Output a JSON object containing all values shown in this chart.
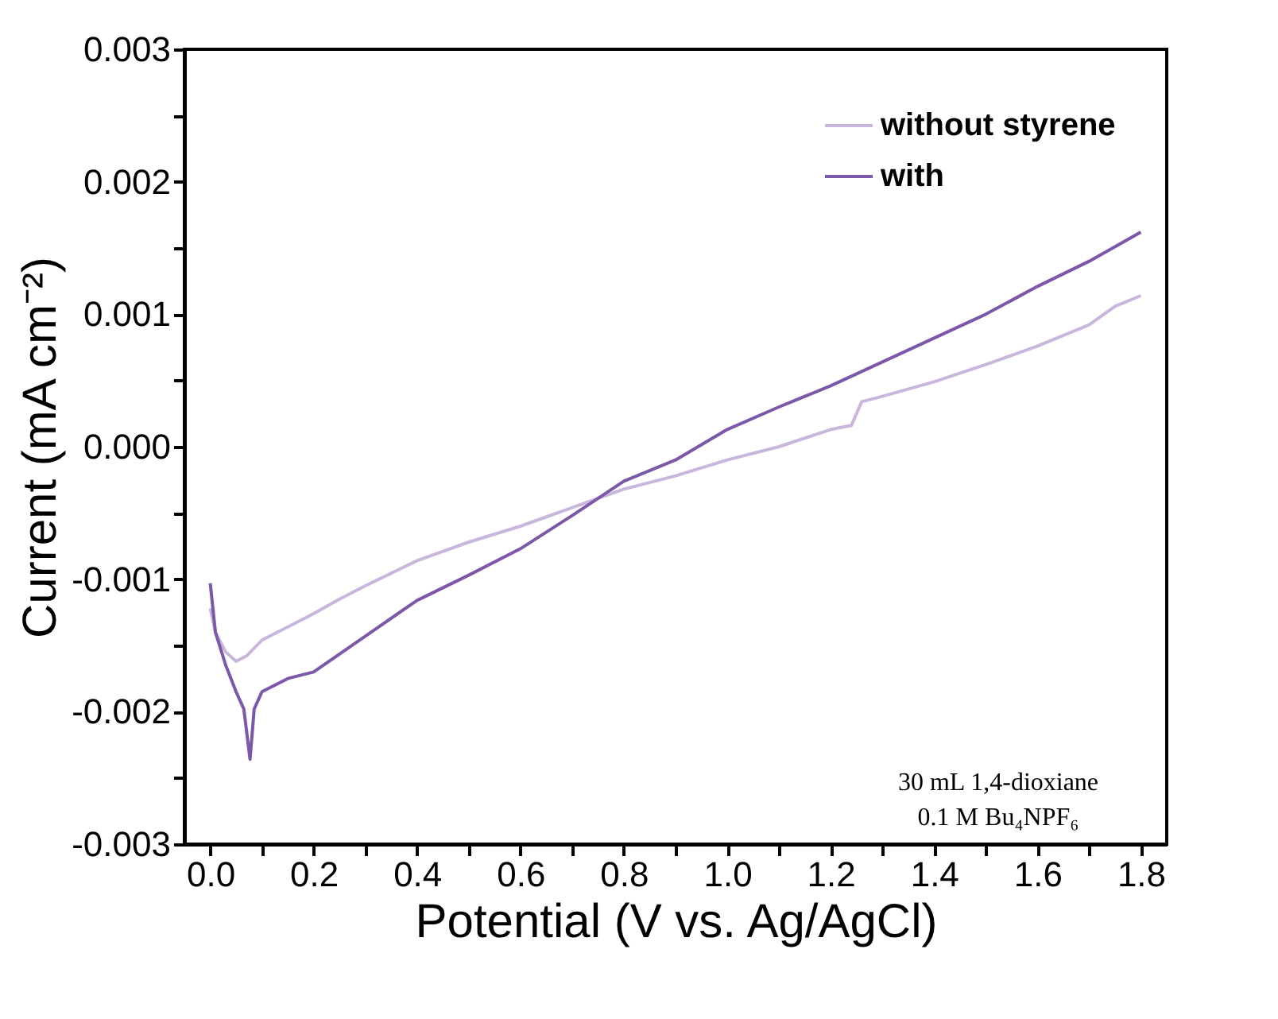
{
  "chart_data": {
    "type": "line",
    "xlabel": "Potential (V vs. Ag/AgCl)",
    "ylabel": "Current (mA cm⁻²)",
    "xlim": [
      -0.05,
      1.85
    ],
    "ylim": [
      -0.003,
      0.003
    ],
    "xticks": [
      {
        "value": 0,
        "label": "0.0"
      },
      {
        "value": 0.1,
        "label": null
      },
      {
        "value": 0.2,
        "label": "0.2"
      },
      {
        "value": 0.3,
        "label": null
      },
      {
        "value": 0.4,
        "label": "0.4"
      },
      {
        "value": 0.5,
        "label": null
      },
      {
        "value": 0.6,
        "label": "0.6"
      },
      {
        "value": 0.7,
        "label": null
      },
      {
        "value": 0.8,
        "label": "0.8"
      },
      {
        "value": 0.9,
        "label": null
      },
      {
        "value": 1,
        "label": "1.0"
      },
      {
        "value": 1.1,
        "label": null
      },
      {
        "value": 1.2,
        "label": "1.2"
      },
      {
        "value": 1.3,
        "label": null
      },
      {
        "value": 1.4,
        "label": "1.4"
      },
      {
        "value": 1.5,
        "label": null
      },
      {
        "value": 1.6,
        "label": "1.6"
      },
      {
        "value": 1.7,
        "label": null
      },
      {
        "value": 1.8,
        "label": "1.8"
      }
    ],
    "yticks": [
      {
        "value": -0.003,
        "label": "-0.003"
      },
      {
        "value": -0.0025,
        "label": null
      },
      {
        "value": -0.002,
        "label": "-0.002"
      },
      {
        "value": -0.0015,
        "label": null
      },
      {
        "value": -0.001,
        "label": "-0.001"
      },
      {
        "value": -0.0005,
        "label": null
      },
      {
        "value": 0,
        "label": "0.000"
      },
      {
        "value": 0.0005,
        "label": null
      },
      {
        "value": 0.001,
        "label": "0.001"
      },
      {
        "value": 0.0015,
        "label": null
      },
      {
        "value": 0.002,
        "label": "0.002"
      },
      {
        "value": 0.0025,
        "label": null
      },
      {
        "value": 0.003,
        "label": "0.003"
      }
    ],
    "grid": false,
    "legend": "top right",
    "marker": "none",
    "line_style": "solid",
    "annotations": [
      "30 mL 1,4-dioxiane",
      "0.1 M Bu₄NPF₆"
    ],
    "series": [
      {
        "name": "without styrene",
        "color": "#c9b6dd",
        "x": [
          0,
          0.01,
          0.03,
          0.05,
          0.07,
          0.1,
          0.15,
          0.2,
          0.25,
          0.3,
          0.4,
          0.5,
          0.6,
          0.7,
          0.8,
          0.9,
          1.0,
          1.1,
          1.2,
          1.24,
          1.26,
          1.3,
          1.4,
          1.5,
          1.6,
          1.7,
          1.75,
          1.8
        ],
        "values": [
          -0.00122,
          -0.0014,
          -0.00155,
          -0.00162,
          -0.00158,
          -0.00146,
          -0.00136,
          -0.00126,
          -0.00115,
          -0.00105,
          -0.00086,
          -0.00072,
          -0.0006,
          -0.00046,
          -0.00032,
          -0.00022,
          -0.0001,
          0,
          0.00013,
          0.00016,
          0.00034,
          0.00038,
          0.00049,
          0.00062,
          0.00076,
          0.00092,
          0.00106,
          0.00114
        ]
      },
      {
        "name": "with",
        "color": "#7b58a8",
        "x": [
          0,
          0.01,
          0.03,
          0.05,
          0.065,
          0.077,
          0.085,
          0.1,
          0.15,
          0.2,
          0.3,
          0.4,
          0.5,
          0.6,
          0.7,
          0.8,
          0.9,
          1.0,
          1.1,
          1.2,
          1.3,
          1.4,
          1.5,
          1.6,
          1.7,
          1.8
        ],
        "values": [
          -0.00103,
          -0.0014,
          -0.00165,
          -0.00185,
          -0.00198,
          -0.00236,
          -0.00198,
          -0.00185,
          -0.00175,
          -0.0017,
          -0.00143,
          -0.00116,
          -0.00097,
          -0.00077,
          -0.00052,
          -0.00026,
          -0.0001,
          0.00013,
          0.0003,
          0.00046,
          0.00064,
          0.00082,
          0.001,
          0.00121,
          0.0014,
          0.00162
        ]
      }
    ]
  }
}
